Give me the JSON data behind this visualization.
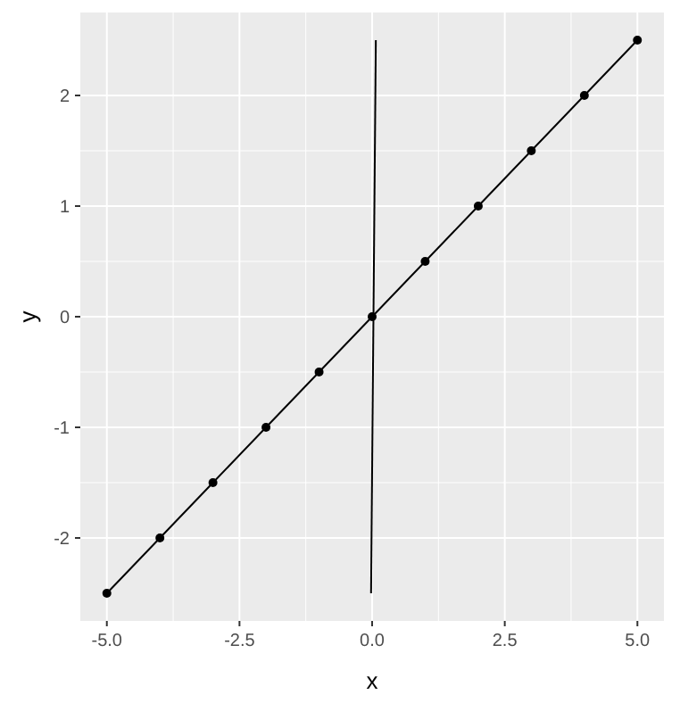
{
  "chart_data": {
    "type": "line",
    "xlabel": "x",
    "ylabel": "y",
    "xlim": [
      -5.5,
      5.5
    ],
    "ylim": [
      -2.75,
      2.75
    ],
    "xticks": [
      {
        "value": -5,
        "label": "-5.0"
      },
      {
        "value": -2.5,
        "label": "-2.5"
      },
      {
        "value": 0,
        "label": "0.0"
      },
      {
        "value": 2.5,
        "label": "2.5"
      },
      {
        "value": 5,
        "label": "5.0"
      }
    ],
    "yticks": [
      -2,
      -1,
      0,
      1,
      2
    ],
    "grid": true,
    "series": [
      {
        "color": "#000000",
        "marker": "circle",
        "x": [
          -5,
          -4,
          -3,
          -2,
          -1,
          0,
          1,
          2,
          3,
          4,
          5
        ],
        "values": [
          -2.5,
          -2,
          -1.5,
          -1,
          -0.5,
          0,
          0.5,
          1,
          1.5,
          2,
          2.5
        ]
      },
      {
        "color": "#000000",
        "marker": "none",
        "x": [
          -0.02,
          0.07
        ],
        "values": [
          -2.5,
          2.5
        ]
      }
    ]
  }
}
